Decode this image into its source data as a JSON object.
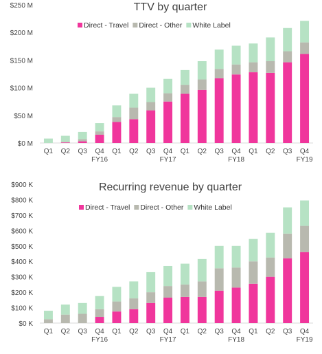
{
  "colors": {
    "direct_travel": "#f0369c",
    "direct_other": "#b8b9af",
    "white_label": "#b6e2c4"
  },
  "chart_data": [
    {
      "type": "bar",
      "stacked": true,
      "title": "TTV by quarter",
      "categories": [
        "Q1",
        "Q2",
        "Q3",
        "Q4",
        "Q1",
        "Q2",
        "Q3",
        "Q4",
        "Q1",
        "Q2",
        "Q3",
        "Q4",
        "Q1",
        "Q2",
        "Q3",
        "Q4"
      ],
      "fiscal_years": [
        {
          "label": "FY16",
          "under_index": 3
        },
        {
          "label": "FY17",
          "under_index": 7
        },
        {
          "label": "FY18",
          "under_index": 11
        },
        {
          "label": "FY19",
          "under_index": 15
        }
      ],
      "ylim": [
        0,
        250
      ],
      "yticks": [
        0,
        50,
        100,
        150,
        200,
        250
      ],
      "ytick_labels": [
        "$0 M",
        "$50 M",
        "$100 M",
        "$150 M",
        "$200 M",
        "$250 M"
      ],
      "legend": [
        "Direct - Travel",
        "Direct - Other",
        "White Label"
      ],
      "series": [
        {
          "name": "Direct - Travel",
          "values": [
            0,
            1,
            3,
            15,
            38,
            43,
            59,
            75,
            89,
            96,
            117,
            124,
            128,
            127,
            146,
            161
          ]
        },
        {
          "name": "Direct - Other",
          "values": [
            0,
            1,
            4,
            6,
            9,
            21,
            15,
            15,
            16,
            19,
            17,
            18,
            18,
            21,
            20,
            21
          ]
        },
        {
          "name": "White Label",
          "values": [
            8,
            11,
            13,
            15,
            21,
            25,
            26,
            26,
            27,
            33,
            35,
            34,
            34,
            43,
            42,
            39
          ]
        }
      ]
    },
    {
      "type": "bar",
      "stacked": true,
      "title": "Recurring revenue by quarter",
      "categories": [
        "Q1",
        "Q2",
        "Q3",
        "Q4",
        "Q1",
        "Q2",
        "Q3",
        "Q4",
        "Q1",
        "Q2",
        "Q3",
        "Q4",
        "Q1",
        "Q2",
        "Q3",
        "Q4"
      ],
      "fiscal_years": [
        {
          "label": "FY16",
          "under_index": 3
        },
        {
          "label": "FY17",
          "under_index": 7
        },
        {
          "label": "FY18",
          "under_index": 11
        },
        {
          "label": "FY19",
          "under_index": 15
        }
      ],
      "ylim": [
        0,
        900
      ],
      "yticks": [
        0,
        100,
        200,
        300,
        400,
        500,
        600,
        700,
        800,
        900
      ],
      "ytick_labels": [
        "$0 K",
        "$100 K",
        "$200 K",
        "$300 K",
        "$400 K",
        "$500 K",
        "$600 K",
        "$700 K",
        "$800 K",
        "$900 K"
      ],
      "legend": [
        "Direct - Travel",
        "Direct - Other",
        "White Label"
      ],
      "series": [
        {
          "name": "Direct - Travel",
          "values": [
            0,
            0,
            0,
            40,
            75,
            90,
            130,
            165,
            170,
            170,
            210,
            230,
            255,
            300,
            420,
            460
          ]
        },
        {
          "name": "Direct - Other",
          "values": [
            25,
            55,
            60,
            50,
            65,
            70,
            70,
            75,
            80,
            100,
            145,
            130,
            145,
            125,
            160,
            170
          ]
        },
        {
          "name": "White Label",
          "values": [
            55,
            65,
            70,
            85,
            95,
            110,
            130,
            130,
            135,
            145,
            145,
            140,
            145,
            160,
            170,
            165
          ]
        }
      ]
    }
  ]
}
